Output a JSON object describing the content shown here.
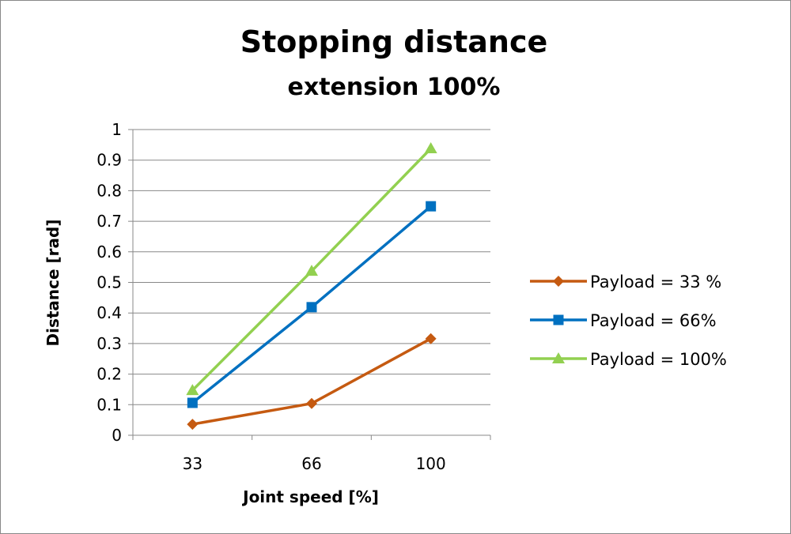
{
  "chart_data": {
    "type": "line",
    "title": "Stopping distance",
    "subtitle": "extension 100%",
    "xlabel": "Joint speed [%]",
    "ylabel": "Distance [rad]",
    "categories": [
      "33",
      "66",
      "100"
    ],
    "ylim": [
      0,
      1
    ],
    "yticks": [
      "0",
      "0.1",
      "0.2",
      "0.3",
      "0.4",
      "0.5",
      "0.6",
      "0.7",
      "0.8",
      "0.9",
      "1"
    ],
    "grid": true,
    "legend_position": "right",
    "series": [
      {
        "name": "Payload = 33 %",
        "values": [
          0.036,
          0.104,
          0.316
        ],
        "color": "#C55A11",
        "marker": "diamond"
      },
      {
        "name": "Payload =  66%",
        "values": [
          0.106,
          0.419,
          0.749
        ],
        "color": "#0070C0",
        "marker": "square"
      },
      {
        "name": "Payload =  100%",
        "values": [
          0.147,
          0.537,
          0.938
        ],
        "color": "#92D050",
        "marker": "triangle"
      }
    ]
  }
}
